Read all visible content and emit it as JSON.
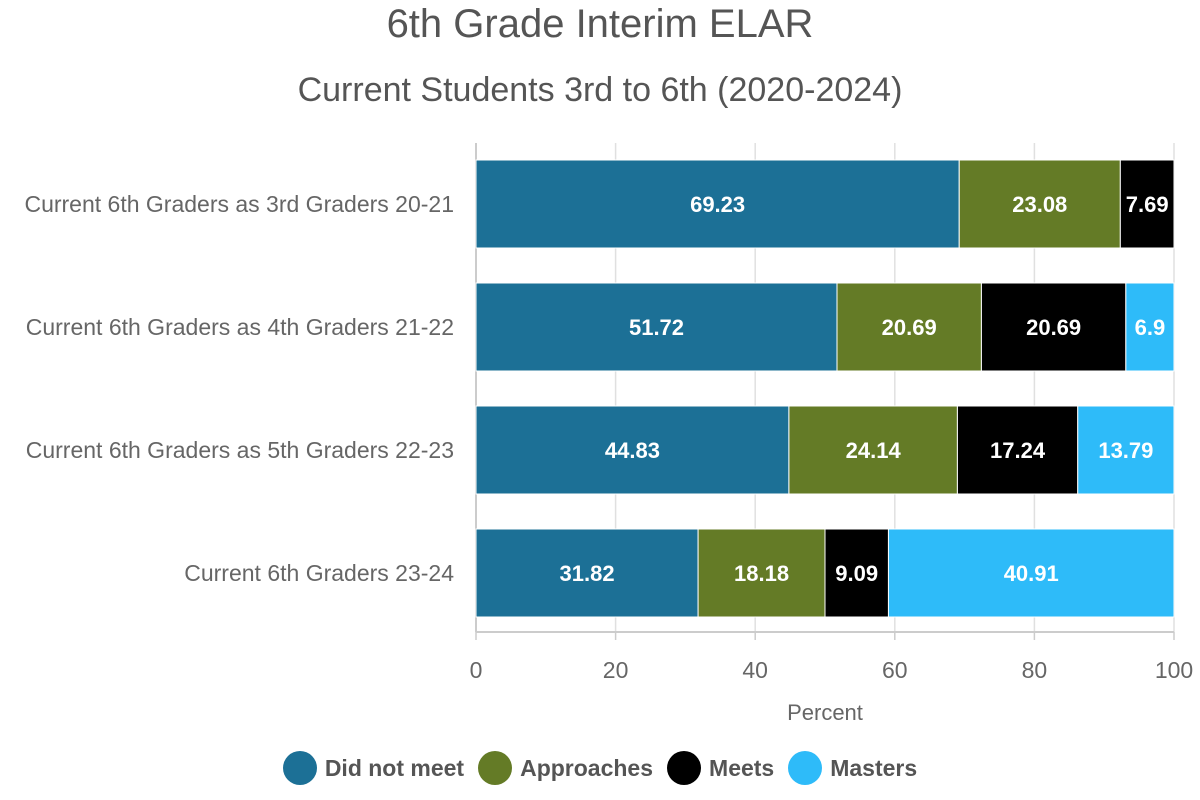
{
  "chart_data": {
    "type": "bar",
    "orientation": "horizontal",
    "stacked": true,
    "title": "6th Grade Interim ELAR",
    "subtitle": "Current Students 3rd to 6th (2020-2024)",
    "xlabel": "Percent",
    "ylabel": "",
    "xlim": [
      0,
      100
    ],
    "xticks": [
      "0",
      "20",
      "40",
      "60",
      "80",
      "100"
    ],
    "categories": [
      "Current 6th Graders as 3rd Graders 20-21",
      "Current 6th Graders as 4th Graders 21-22",
      "Current 6th Graders as 5th Graders 22-23",
      "Current 6th Graders 23-24"
    ],
    "series": [
      {
        "name": "Did not meet",
        "color": "#1c7096",
        "values": [
          69.23,
          51.72,
          44.83,
          31.82
        ],
        "labels": [
          "69.23",
          "51.72",
          "44.83",
          "31.82"
        ]
      },
      {
        "name": "Approaches",
        "color": "#647b26",
        "values": [
          23.08,
          20.69,
          24.14,
          18.18
        ],
        "labels": [
          "23.08",
          "20.69",
          "24.14",
          "18.18"
        ]
      },
      {
        "name": "Meets",
        "color": "#000000",
        "values": [
          7.69,
          20.69,
          17.24,
          9.09
        ],
        "labels": [
          "7.69",
          "20.69",
          "17.24",
          "9.09"
        ]
      },
      {
        "name": "Masters",
        "color": "#2ebbf9",
        "values": [
          0,
          6.9,
          13.79,
          40.91
        ],
        "labels": [
          "",
          "6.9",
          "13.79",
          "40.91"
        ]
      }
    ],
    "grid": true,
    "legend_position": "bottom"
  }
}
